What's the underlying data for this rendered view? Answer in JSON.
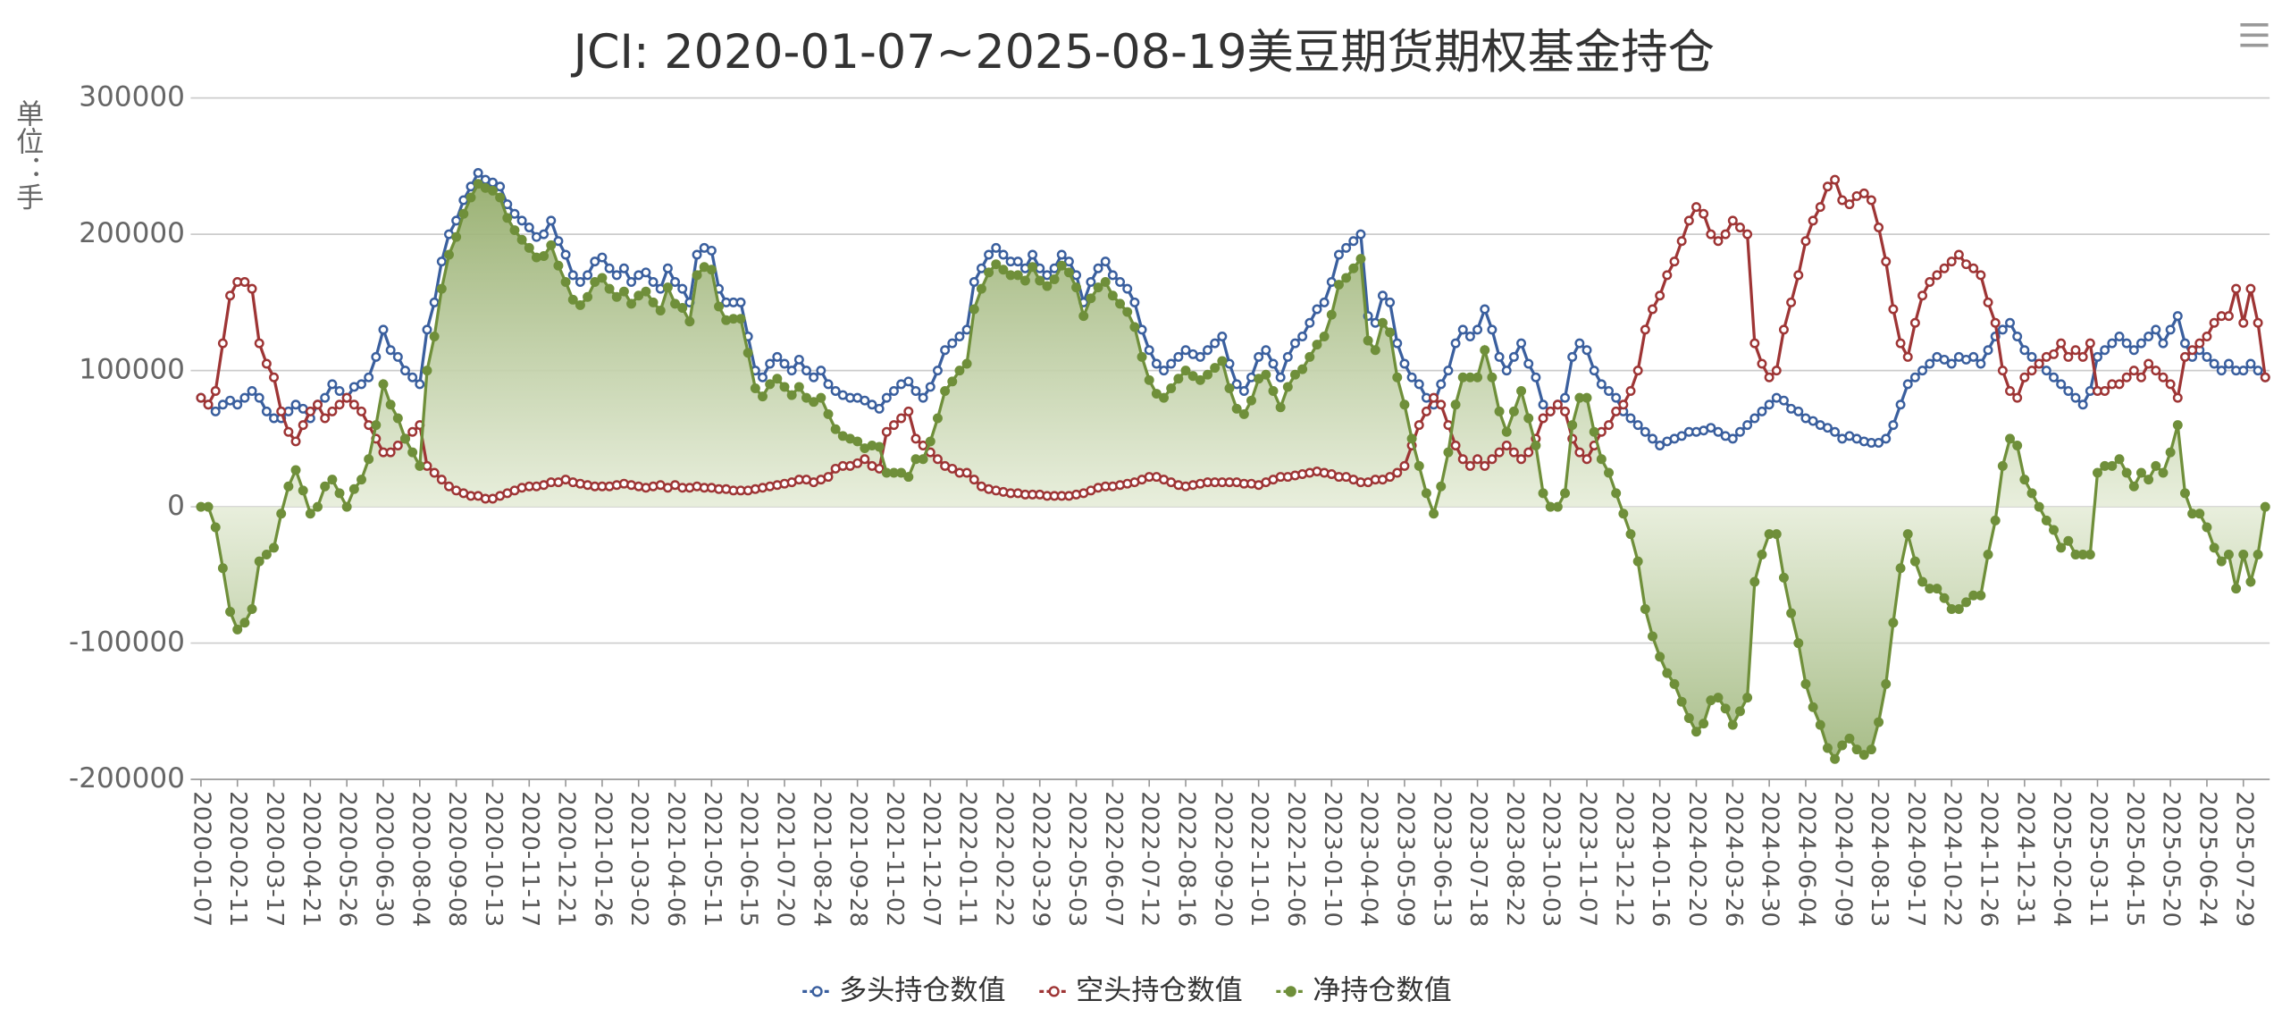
{
  "chart_data": {
    "type": "line",
    "title": "JCI: 2020-01-07~2025-08-19美豆期货期权基金持仓",
    "y_axis_label": "单位：手",
    "ylim": [
      -200000,
      300000
    ],
    "yticks": [
      -200000,
      -100000,
      0,
      100000,
      200000,
      300000
    ],
    "grid": true,
    "legend": "bottom",
    "categories": [
      "2020-01-07",
      null,
      null,
      null,
      null,
      "2020-02-11",
      null,
      null,
      null,
      null,
      "2020-03-17",
      null,
      null,
      null,
      null,
      "2020-04-21",
      null,
      null,
      null,
      null,
      "2020-05-26",
      null,
      null,
      null,
      null,
      "2020-06-30",
      null,
      null,
      null,
      null,
      "2020-08-04",
      null,
      null,
      null,
      null,
      "2020-09-08",
      null,
      null,
      null,
      null,
      "2020-10-13",
      null,
      null,
      null,
      null,
      "2020-11-17",
      null,
      null,
      null,
      null,
      "2020-12-21",
      null,
      null,
      null,
      null,
      "2021-01-26",
      null,
      null,
      null,
      null,
      "2021-03-02",
      null,
      null,
      null,
      null,
      "2021-04-06",
      null,
      null,
      null,
      null,
      "2021-05-11",
      null,
      null,
      null,
      null,
      "2021-06-15",
      null,
      null,
      null,
      null,
      "2021-07-20",
      null,
      null,
      null,
      null,
      "2021-08-24",
      null,
      null,
      null,
      null,
      "2021-09-28",
      null,
      null,
      null,
      null,
      "2021-11-02",
      null,
      null,
      null,
      null,
      "2021-12-07",
      null,
      null,
      null,
      null,
      "2022-01-11",
      null,
      null,
      null,
      null,
      "2022-02-22",
      null,
      null,
      null,
      null,
      "2022-03-29",
      null,
      null,
      null,
      null,
      "2022-05-03",
      null,
      null,
      null,
      null,
      "2022-06-07",
      null,
      null,
      null,
      null,
      "2022-07-12",
      null,
      null,
      null,
      null,
      "2022-08-16",
      null,
      null,
      null,
      null,
      "2022-09-20",
      null,
      null,
      null,
      null,
      "2022-11-01",
      null,
      null,
      null,
      null,
      "2022-12-06",
      null,
      null,
      null,
      null,
      "2023-01-10",
      null,
      null,
      null,
      null,
      "2023-04-04",
      null,
      null,
      null,
      null,
      "2023-05-09",
      null,
      null,
      null,
      null,
      "2023-06-13",
      null,
      null,
      null,
      null,
      "2023-07-18",
      null,
      null,
      null,
      null,
      "2023-08-22",
      null,
      null,
      null,
      null,
      "2023-10-03",
      null,
      null,
      null,
      null,
      "2023-11-07",
      null,
      null,
      null,
      null,
      "2023-12-12",
      null,
      null,
      null,
      null,
      "2024-01-16",
      null,
      null,
      null,
      null,
      "2024-02-20",
      null,
      null,
      null,
      null,
      "2024-03-26",
      null,
      null,
      null,
      null,
      "2024-04-30",
      null,
      null,
      null,
      null,
      "2024-06-04",
      null,
      null,
      null,
      null,
      "2024-07-09",
      null,
      null,
      null,
      null,
      "2024-08-13",
      null,
      null,
      null,
      null,
      "2024-09-17",
      null,
      null,
      null,
      null,
      "2024-10-22",
      null,
      null,
      null,
      null,
      "2024-11-26",
      null,
      null,
      null,
      null,
      "2024-12-31",
      null,
      null,
      null,
      null,
      "2025-02-04",
      null,
      null,
      null,
      null,
      "2025-03-11",
      null,
      null,
      null,
      null,
      "2025-04-15",
      null,
      null,
      null,
      null,
      "2025-05-20",
      null,
      null,
      null,
      null,
      "2025-06-24",
      null,
      null,
      null,
      null,
      "2025-07-29",
      null,
      null,
      null
    ],
    "series": [
      {
        "name": "多头持仓数值",
        "color": "#3a5f9e",
        "values": [
          80000,
          75000,
          70000,
          75000,
          78000,
          75000,
          80000,
          85000,
          80000,
          70000,
          65000,
          65000,
          70000,
          75000,
          72000,
          65000,
          75000,
          80000,
          90000,
          85000,
          80000,
          88000,
          90000,
          95000,
          110000,
          130000,
          115000,
          110000,
          100000,
          95000,
          90000,
          130000,
          150000,
          180000,
          200000,
          210000,
          225000,
          235000,
          245000,
          240000,
          238000,
          235000,
          222000,
          215000,
          210000,
          205000,
          198000,
          200000,
          210000,
          195000,
          185000,
          170000,
          165000,
          170000,
          180000,
          183000,
          175000,
          170000,
          175000,
          165000,
          170000,
          172000,
          165000,
          160000,
          175000,
          165000,
          160000,
          150000,
          185000,
          190000,
          188000,
          160000,
          150000,
          150000,
          150000,
          125000,
          100000,
          95000,
          105000,
          110000,
          105000,
          100000,
          108000,
          100000,
          95000,
          100000,
          90000,
          85000,
          82000,
          80000,
          80000,
          78000,
          75000,
          72000,
          80000,
          85000,
          90000,
          92000,
          85000,
          80000,
          88000,
          100000,
          115000,
          120000,
          125000,
          130000,
          165000,
          175000,
          185000,
          190000,
          185000,
          180000,
          180000,
          175000,
          185000,
          175000,
          170000,
          175000,
          185000,
          180000,
          170000,
          150000,
          165000,
          175000,
          180000,
          170000,
          165000,
          160000,
          150000,
          130000,
          115000,
          105000,
          100000,
          105000,
          110000,
          115000,
          112000,
          110000,
          115000,
          120000,
          125000,
          105000,
          90000,
          85000,
          95000,
          110000,
          115000,
          105000,
          95000,
          110000,
          120000,
          125000,
          135000,
          145000,
          150000,
          165000,
          185000,
          190000,
          195000,
          200000,
          140000,
          135000,
          155000,
          150000,
          120000,
          105000,
          95000,
          90000,
          80000,
          75000,
          90000,
          100000,
          120000,
          130000,
          125000,
          130000,
          145000,
          130000,
          110000,
          100000,
          110000,
          120000,
          105000,
          95000,
          75000,
          70000,
          75000,
          80000,
          110000,
          120000,
          115000,
          100000,
          90000,
          85000,
          80000,
          70000,
          65000,
          60000,
          55000,
          50000,
          45000,
          48000,
          50000,
          52000,
          55000,
          55000,
          56000,
          58000,
          55000,
          52000,
          50000,
          55000,
          60000,
          65000,
          70000,
          75000,
          80000,
          78000,
          72000,
          70000,
          65000,
          63000,
          60000,
          58000,
          55000,
          50000,
          52000,
          50000,
          48000,
          47000,
          47000,
          50000,
          60000,
          75000,
          90000,
          95000,
          100000,
          105000,
          110000,
          108000,
          105000,
          110000,
          108000,
          110000,
          105000,
          115000,
          125000,
          130000,
          135000,
          125000,
          115000,
          110000,
          105000,
          100000,
          95000,
          90000,
          85000,
          80000,
          75000,
          85000,
          110000,
          115000,
          120000,
          125000,
          120000,
          115000,
          120000,
          125000,
          130000,
          120000,
          130000,
          140000,
          120000,
          110000,
          115000,
          110000,
          105000,
          100000,
          105000,
          100000,
          100000,
          105000,
          100000,
          95000
        ]
      },
      {
        "name": "空头持仓数值",
        "color": "#9e3535",
        "values": [
          80000,
          75000,
          85000,
          120000,
          155000,
          165000,
          165000,
          160000,
          120000,
          105000,
          95000,
          70000,
          55000,
          48000,
          60000,
          70000,
          75000,
          65000,
          70000,
          75000,
          80000,
          75000,
          70000,
          60000,
          50000,
          40000,
          40000,
          45000,
          50000,
          55000,
          60000,
          30000,
          25000,
          20000,
          15000,
          12000,
          10000,
          8000,
          8000,
          6000,
          6000,
          8000,
          10000,
          12000,
          14000,
          15000,
          15000,
          16000,
          18000,
          18000,
          20000,
          18000,
          17000,
          16000,
          15000,
          15000,
          15000,
          16000,
          17000,
          16000,
          15000,
          14000,
          15000,
          16000,
          14000,
          16000,
          14000,
          14000,
          15000,
          14000,
          14000,
          13000,
          13000,
          12000,
          12000,
          12000,
          13000,
          14000,
          15000,
          16000,
          17000,
          18000,
          20000,
          20000,
          18000,
          20000,
          22000,
          28000,
          30000,
          30000,
          32000,
          35000,
          30000,
          28000,
          55000,
          60000,
          65000,
          70000,
          50000,
          45000,
          40000,
          35000,
          30000,
          28000,
          25000,
          25000,
          20000,
          15000,
          13000,
          12000,
          11000,
          10000,
          10000,
          9000,
          9000,
          9000,
          8000,
          8000,
          8000,
          8000,
          9000,
          10000,
          12000,
          14000,
          15000,
          15000,
          16000,
          17000,
          18000,
          20000,
          22000,
          22000,
          20000,
          18000,
          16000,
          15000,
          16000,
          17000,
          18000,
          18000,
          18000,
          18000,
          18000,
          17000,
          17000,
          16000,
          18000,
          20000,
          22000,
          22000,
          23000,
          24000,
          25000,
          26000,
          25000,
          24000,
          22000,
          22000,
          20000,
          18000,
          18000,
          20000,
          20000,
          22000,
          25000,
          30000,
          45000,
          60000,
          70000,
          80000,
          75000,
          60000,
          45000,
          35000,
          30000,
          35000,
          30000,
          35000,
          40000,
          45000,
          40000,
          35000,
          40000,
          50000,
          65000,
          70000,
          75000,
          70000,
          50000,
          40000,
          35000,
          45000,
          55000,
          60000,
          70000,
          75000,
          85000,
          100000,
          130000,
          145000,
          155000,
          170000,
          180000,
          195000,
          210000,
          220000,
          215000,
          200000,
          195000,
          200000,
          210000,
          205000,
          200000,
          120000,
          105000,
          95000,
          100000,
          130000,
          150000,
          170000,
          195000,
          210000,
          220000,
          235000,
          240000,
          225000,
          222000,
          228000,
          230000,
          225000,
          205000,
          180000,
          145000,
          120000,
          110000,
          135000,
          155000,
          165000,
          170000,
          175000,
          180000,
          185000,
          178000,
          175000,
          170000,
          150000,
          135000,
          100000,
          85000,
          80000,
          95000,
          100000,
          105000,
          110000,
          112000,
          120000,
          110000,
          115000,
          110000,
          120000,
          85000,
          85000,
          90000,
          90000,
          95000,
          100000,
          95000,
          105000,
          100000,
          95000,
          90000,
          80000,
          110000,
          115000,
          120000,
          125000,
          135000,
          140000,
          140000,
          160000,
          135000,
          160000,
          135000,
          95000
        ]
      },
      {
        "name": "净持仓数值",
        "color": "#6f8f3a",
        "area": true,
        "values": [
          0,
          0,
          -15000,
          -45000,
          -77000,
          -90000,
          -85000,
          -75000,
          -40000,
          -35000,
          -30000,
          -5000,
          15000,
          27000,
          12000,
          -5000,
          0,
          15000,
          20000,
          10000,
          0,
          13000,
          20000,
          35000,
          60000,
          90000,
          75000,
          65000,
          50000,
          40000,
          30000,
          100000,
          125000,
          160000,
          185000,
          198000,
          215000,
          227000,
          237000,
          234000,
          232000,
          227000,
          212000,
          203000,
          196000,
          190000,
          183000,
          184000,
          192000,
          177000,
          165000,
          152000,
          148000,
          154000,
          165000,
          168000,
          160000,
          154000,
          158000,
          149000,
          155000,
          158000,
          150000,
          144000,
          161000,
          149000,
          146000,
          136000,
          170000,
          176000,
          174000,
          147000,
          137000,
          138000,
          138000,
          113000,
          87000,
          81000,
          90000,
          94000,
          88000,
          82000,
          88000,
          80000,
          77000,
          80000,
          68000,
          57000,
          52000,
          50000,
          48000,
          43000,
          45000,
          44000,
          25000,
          25000,
          25000,
          22000,
          35000,
          35000,
          48000,
          65000,
          85000,
          92000,
          100000,
          105000,
          145000,
          160000,
          172000,
          178000,
          174000,
          170000,
          170000,
          166000,
          176000,
          166000,
          162000,
          167000,
          177000,
          172000,
          161000,
          140000,
          153000,
          161000,
          165000,
          155000,
          149000,
          143000,
          132000,
          110000,
          93000,
          83000,
          80000,
          87000,
          94000,
          100000,
          96000,
          93000,
          97000,
          102000,
          107000,
          87000,
          72000,
          68000,
          78000,
          94000,
          97000,
          85000,
          73000,
          88000,
          97000,
          101000,
          110000,
          119000,
          125000,
          141000,
          163000,
          168000,
          175000,
          182000,
          122000,
          115000,
          135000,
          128000,
          95000,
          75000,
          50000,
          30000,
          10000,
          -5000,
          15000,
          40000,
          75000,
          95000,
          95000,
          95000,
          115000,
          95000,
          70000,
          55000,
          70000,
          85000,
          65000,
          45000,
          10000,
          0,
          0,
          10000,
          60000,
          80000,
          80000,
          55000,
          35000,
          25000,
          10000,
          -5000,
          -20000,
          -40000,
          -75000,
          -95000,
          -110000,
          -122000,
          -130000,
          -143000,
          -155000,
          -165000,
          -159000,
          -142000,
          -140000,
          -148000,
          -160000,
          -150000,
          -140000,
          -55000,
          -35000,
          -20000,
          -20000,
          -52000,
          -78000,
          -100000,
          -130000,
          -147000,
          -160000,
          -177000,
          -185000,
          -175000,
          -170000,
          -178000,
          -182000,
          -178000,
          -158000,
          -130000,
          -85000,
          -45000,
          -20000,
          -40000,
          -55000,
          -60000,
          -60000,
          -67000,
          -75000,
          -75000,
          -70000,
          -65000,
          -65000,
          -35000,
          -10000,
          30000,
          50000,
          45000,
          20000,
          10000,
          0,
          -10000,
          -17000,
          -30000,
          -25000,
          -35000,
          -35000,
          -35000,
          25000,
          30000,
          30000,
          35000,
          25000,
          15000,
          25000,
          20000,
          30000,
          25000,
          40000,
          60000,
          10000,
          -5000,
          -5000,
          -15000,
          -30000,
          -40000,
          -35000,
          -60000,
          -35000,
          -55000,
          -35000,
          0
        ]
      }
    ]
  }
}
